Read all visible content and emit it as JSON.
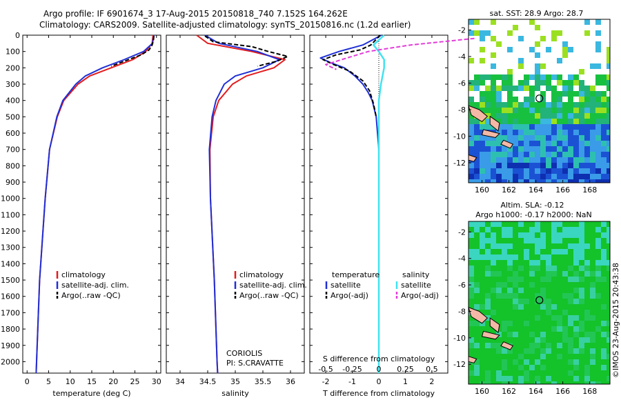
{
  "header": {
    "title_line1": "Argo profile: IF 6901674_3 17-Aug-2015 20150818_740 7.152S 164.262E",
    "title_line2": "Climatology: CARS2009. Satellite-adjusted climatology: synTS_20150816.nc (1.2d earlier)"
  },
  "credit": "©IMOS 23-Aug-2015 20:43:38",
  "colors": {
    "climatology": "#e41a1c",
    "satellite": "#1f2fd6",
    "argo": "#000000",
    "sal_satellite": "#3fe3f0",
    "sal_argo": "#e23ad8",
    "land": "#f4b8a6"
  },
  "chart_data": [
    {
      "type": "line",
      "panel": "temperature",
      "xlabel": "temperature (deg C)",
      "xlim": [
        -1,
        31
      ],
      "ylim": [
        2070,
        0
      ],
      "x_ticks": [
        0,
        5,
        10,
        15,
        20,
        25,
        30
      ],
      "y_ticks": [
        0,
        100,
        200,
        300,
        400,
        500,
        600,
        700,
        800,
        900,
        1000,
        1100,
        1200,
        1300,
        1400,
        1500,
        1600,
        1700,
        1800,
        1900,
        2000
      ],
      "legend": [
        "climatology",
        "satellite-adj. clim.",
        "Argo(..raw -QC)"
      ],
      "series": [
        {
          "name": "climatology",
          "depth": [
            0,
            50,
            100,
            150,
            200,
            250,
            300,
            400,
            500,
            700,
            1000,
            1500,
            2000,
            2070
          ],
          "values": [
            29.2,
            29.0,
            27.5,
            24.5,
            19.5,
            14.5,
            11.8,
            8.5,
            7.0,
            5.2,
            4.2,
            2.9,
            2.2,
            2.1
          ]
        },
        {
          "name": "satellite-adj. clim.",
          "depth": [
            0,
            50,
            100,
            150,
            200,
            250,
            300,
            400,
            500,
            700,
            1000,
            1500,
            2000,
            2070
          ],
          "values": [
            29.4,
            29.1,
            27.0,
            22.5,
            17.5,
            13.5,
            11.3,
            8.3,
            6.9,
            5.2,
            4.2,
            2.9,
            2.2,
            2.1
          ]
        },
        {
          "name": "Argo(..raw -QC)",
          "depth": [
            5,
            30,
            60,
            90,
            120,
            150,
            170,
            190
          ],
          "values": [
            29.4,
            29.3,
            29.0,
            28.3,
            26.5,
            23.5,
            21.5,
            19.5
          ]
        }
      ]
    },
    {
      "type": "line",
      "panel": "salinity",
      "xlabel": "salinity",
      "xlim": [
        33.75,
        36.25
      ],
      "ylim": [
        2070,
        0
      ],
      "x_ticks": [
        34,
        34.5,
        35,
        35.5,
        36
      ],
      "legend": [
        "climatology",
        "satellite-adj. clim.",
        "Argo(..raw -QC)"
      ],
      "annotation": [
        "CORIOLIS",
        "PI: S.CRAVATTE"
      ],
      "series": [
        {
          "name": "climatology",
          "depth": [
            0,
            50,
            100,
            150,
            200,
            250,
            300,
            400,
            500,
            700,
            1000,
            1500,
            2000,
            2070
          ],
          "values": [
            34.3,
            34.5,
            35.3,
            35.9,
            35.7,
            35.2,
            34.95,
            34.7,
            34.6,
            34.54,
            34.55,
            34.62,
            34.67,
            34.68
          ]
        },
        {
          "name": "satellite-adj. clim.",
          "depth": [
            0,
            50,
            100,
            150,
            200,
            250,
            300,
            400,
            500,
            700,
            1000,
            1500,
            2000,
            2070
          ],
          "values": [
            34.45,
            34.7,
            35.4,
            35.8,
            35.5,
            35.0,
            34.8,
            34.65,
            34.58,
            34.53,
            34.55,
            34.62,
            34.67,
            34.68
          ]
        },
        {
          "name": "Argo(..raw -QC)",
          "depth": [
            5,
            40,
            70,
            100,
            130,
            160,
            190
          ],
          "values": [
            34.45,
            34.6,
            35.3,
            35.6,
            35.95,
            35.75,
            35.4
          ]
        }
      ]
    },
    {
      "type": "line",
      "panel": "difference",
      "xlabel": "T difference from climatology",
      "x2label": "S difference from climatology",
      "xlim": [
        -2.6,
        2.6
      ],
      "ylim": [
        2070,
        0
      ],
      "x_ticks": [
        -2,
        -1,
        0,
        1,
        2
      ],
      "x2_ticks": [
        -0.5,
        -0.25,
        0,
        0.25,
        0.5
      ],
      "legend_headers": [
        "temperature",
        "salinity"
      ],
      "legend": [
        "satellite",
        "Argo(-adj)",
        "satellite",
        "Argo(-adj)"
      ],
      "series": [
        {
          "name": "satellite",
          "depth": [
            0,
            60,
            100,
            140,
            170,
            200,
            250,
            300,
            350,
            400,
            500,
            700,
            1000,
            1500,
            2000,
            2070
          ],
          "values": [
            0.1,
            -0.6,
            -1.5,
            -2.2,
            -1.8,
            -1.3,
            -0.9,
            -0.6,
            -0.4,
            -0.25,
            -0.1,
            0.0,
            0.0,
            0.0,
            0.0,
            0.0
          ]
        },
        {
          "name": "Argo(-adj)",
          "depth": [
            0,
            60,
            90,
            120,
            150,
            180,
            220,
            280,
            340,
            420,
            500
          ],
          "values": [
            0.05,
            -0.3,
            -0.7,
            -1.6,
            -2.1,
            -1.7,
            -1.1,
            -0.6,
            -0.35,
            -0.2,
            -0.1
          ]
        },
        {
          "name": "sal satellite",
          "depth": [
            0,
            60,
            100,
            150,
            200,
            300,
            400,
            500,
            700,
            1000,
            1500,
            2000,
            2070
          ],
          "values": [
            0.05,
            -0.05,
            0.0,
            0.05,
            0.05,
            0.02,
            0.0,
            0.0,
            0.0,
            0.0,
            0.0,
            0.0,
            0.0
          ]
        },
        {
          "name": "sal Argo(-adj)",
          "depth": [
            20,
            60,
            100,
            140,
            180,
            210
          ],
          "values": [
            0.9,
            0.3,
            -0.1,
            -0.3,
            -0.5,
            -0.4
          ]
        }
      ]
    },
    {
      "type": "heatmap",
      "panel": "sst_map",
      "title": "sat. SST: 28.9 Argo: 28.7",
      "xlim": [
        159,
        169.5
      ],
      "ylim": [
        -13.5,
        -1.2
      ],
      "x_ticks": [
        160,
        162,
        164,
        166,
        168
      ],
      "y_ticks": [
        -2,
        -4,
        -6,
        -8,
        -10,
        -12
      ],
      "marker": {
        "lon": 164.262,
        "lat": -7.152
      }
    },
    {
      "type": "heatmap",
      "panel": "sla_map",
      "title_line1": "Altim. SLA: -0.12",
      "title_line2": "Argo h1000: -0.17 h2000: NaN",
      "xlim": [
        159,
        169.5
      ],
      "ylim": [
        -13.5,
        -1.2
      ],
      "x_ticks": [
        160,
        162,
        164,
        166,
        168
      ],
      "y_ticks": [
        -2,
        -4,
        -6,
        -8,
        -10,
        -12
      ],
      "marker": {
        "lon": 164.262,
        "lat": -7.152
      }
    }
  ]
}
